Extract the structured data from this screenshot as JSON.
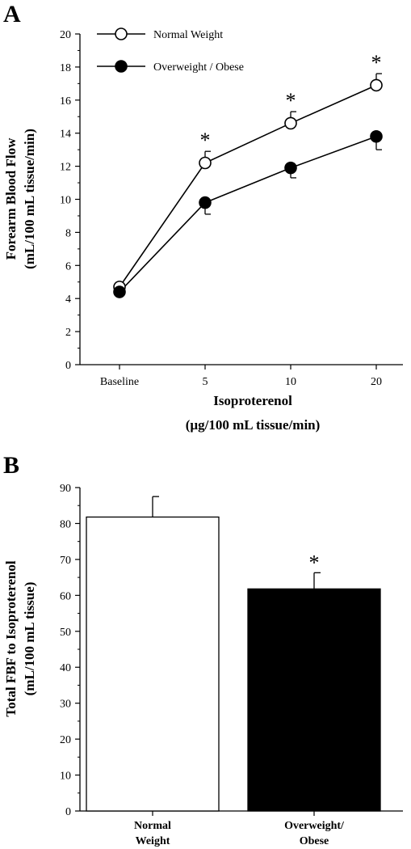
{
  "chart_data": [
    {
      "panel": "A",
      "type": "line",
      "categories": [
        "Baseline",
        "5",
        "10",
        "20"
      ],
      "xlabel": [
        "Isoproterenol",
        "(µg/100 mL tissue/min)"
      ],
      "ylabel": [
        "Forearm Blood Flow",
        "(mL/100 mL tissue/min)"
      ],
      "ylim": [
        0,
        20
      ],
      "yticks": [
        0,
        2,
        4,
        6,
        8,
        10,
        12,
        14,
        16,
        18,
        20
      ],
      "grid": false,
      "legend": "top-left",
      "series": [
        {
          "name": "Normal Weight",
          "values": [
            4.7,
            12.2,
            14.6,
            16.9
          ],
          "errors": [
            0.2,
            0.7,
            0.7,
            0.7
          ],
          "marker": "open-circle",
          "color": "#000000",
          "fill": "#ffffff"
        },
        {
          "name": "Overweight / Obese",
          "values": [
            4.4,
            9.8,
            11.9,
            13.8
          ],
          "errors": [
            0.2,
            0.7,
            0.6,
            0.8
          ],
          "marker": "filled-circle",
          "color": "#000000",
          "fill": "#000000"
        }
      ],
      "annotations": [
        {
          "text": "*",
          "category": "5"
        },
        {
          "text": "*",
          "category": "10"
        },
        {
          "text": "*",
          "category": "20"
        }
      ]
    },
    {
      "panel": "B",
      "type": "bar",
      "categories": [
        [
          "Normal",
          "Weight"
        ],
        [
          "Overweight/",
          "Obese"
        ]
      ],
      "values": [
        81.8,
        61.8
      ],
      "errors": [
        5.7,
        4.5
      ],
      "colors": [
        "#ffffff",
        "#000000"
      ],
      "ylabel": [
        "Total FBF to Isoproterenol",
        "(mL/100 mL tissue)"
      ],
      "ylim": [
        0,
        90
      ],
      "yticks": [
        0,
        10,
        20,
        30,
        40,
        50,
        60,
        70,
        80,
        90
      ],
      "grid": false,
      "annotations": [
        {
          "text": "*",
          "category_index": 1
        }
      ]
    }
  ]
}
